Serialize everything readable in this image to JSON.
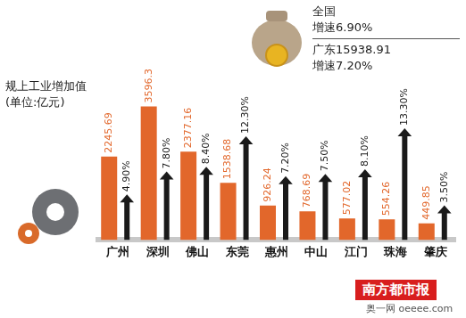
{
  "chart_data": {
    "type": "bar",
    "title": "规上工业增加值",
    "subtitle": "(单位:亿元)",
    "categories": [
      "广州",
      "深圳",
      "佛山",
      "东莞",
      "惠州",
      "中山",
      "江门",
      "珠海",
      "肇庆"
    ],
    "series": [
      {
        "color": "#e2672b",
        "values": [
          2245.69,
          3596.3,
          2377.16,
          1538.68,
          926.24,
          768.69,
          577.02,
          554.26,
          449.85
        ]
      },
      {
        "color": "#1a1a1a",
        "axis": "y2",
        "marker": "arrow",
        "values": [
          4.9,
          7.8,
          8.4,
          12.3,
          7.2,
          7.5,
          8.1,
          13.3,
          3.5
        ],
        "value_labels": [
          "4.90%",
          "7.80%",
          "8.40%",
          "12.30%",
          "7.20%",
          "7.50%",
          "8.10%",
          "13.30%",
          "3.50%"
        ]
      }
    ],
    "ylim": [
      0,
      5500
    ],
    "y2lim": [
      0,
      26
    ],
    "grid": false,
    "data_labels": true,
    "tick_labels": "x",
    "annotations": [
      "全国",
      "增速6.90%",
      "广东15938.91",
      "增速7.20%"
    ],
    "source": [
      "南方都市报",
      "奥一网 oeeee.com"
    ]
  }
}
